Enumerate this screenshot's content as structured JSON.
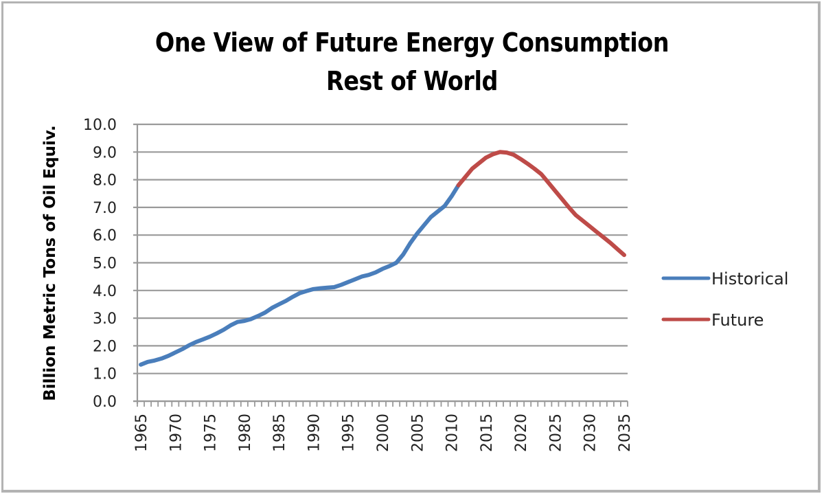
{
  "chart_data": {
    "type": "line",
    "title": "One View of Future Energy Consumption",
    "subtitle": "Rest of World",
    "xlabel": "",
    "ylabel": "Billion Metric Tons of Oil Equiv.",
    "ylim": [
      0,
      10
    ],
    "yticks": [
      "0.0",
      "1.0",
      "2.0",
      "3.0",
      "4.0",
      "5.0",
      "6.0",
      "7.0",
      "8.0",
      "9.0",
      "10.0"
    ],
    "xtick_labels": [
      "1965",
      "1970",
      "1975",
      "1980",
      "1985",
      "1990",
      "1995",
      "2000",
      "2005",
      "2010",
      "2015",
      "2020",
      "2025",
      "2030",
      "2035"
    ],
    "grid": true,
    "legend_position": "right",
    "x": [
      1965,
      1966,
      1967,
      1968,
      1969,
      1970,
      1971,
      1972,
      1973,
      1974,
      1975,
      1976,
      1977,
      1978,
      1979,
      1980,
      1981,
      1982,
      1983,
      1984,
      1985,
      1986,
      1987,
      1988,
      1989,
      1990,
      1991,
      1992,
      1993,
      1994,
      1995,
      1996,
      1997,
      1998,
      1999,
      2000,
      2001,
      2002,
      2003,
      2004,
      2005,
      2006,
      2007,
      2008,
      2009,
      2010,
      2011,
      2012,
      2013,
      2014,
      2015,
      2016,
      2017,
      2018,
      2019,
      2020,
      2021,
      2022,
      2023,
      2024,
      2025,
      2026,
      2027,
      2028,
      2029,
      2030,
      2031,
      2032,
      2033,
      2034,
      2035
    ],
    "series": [
      {
        "name": "Historical",
        "color": "#4a7ebb",
        "x": [
          1965,
          1966,
          1967,
          1968,
          1969,
          1970,
          1971,
          1972,
          1973,
          1974,
          1975,
          1976,
          1977,
          1978,
          1979,
          1980,
          1981,
          1982,
          1983,
          1984,
          1985,
          1986,
          1987,
          1988,
          1989,
          1990,
          1991,
          1992,
          1993,
          1994,
          1995,
          1996,
          1997,
          1998,
          1999,
          2000,
          2001,
          2002,
          2003,
          2004,
          2005,
          2006,
          2007,
          2008,
          2009,
          2010,
          2011
        ],
        "values": [
          1.32,
          1.42,
          1.47,
          1.54,
          1.64,
          1.76,
          1.88,
          2.02,
          2.14,
          2.23,
          2.33,
          2.45,
          2.58,
          2.74,
          2.86,
          2.9,
          2.97,
          3.08,
          3.2,
          3.37,
          3.5,
          3.62,
          3.77,
          3.9,
          3.98,
          4.05,
          4.08,
          4.1,
          4.12,
          4.2,
          4.3,
          4.4,
          4.5,
          4.56,
          4.65,
          4.78,
          4.88,
          5.0,
          5.3,
          5.7,
          6.05,
          6.35,
          6.65,
          6.85,
          7.05,
          7.4,
          7.8
        ]
      },
      {
        "name": "Future",
        "color": "#be4b48",
        "x": [
          2011,
          2012,
          2013,
          2014,
          2015,
          2016,
          2017,
          2018,
          2019,
          2020,
          2021,
          2022,
          2023,
          2024,
          2025,
          2026,
          2027,
          2028,
          2029,
          2030,
          2031,
          2032,
          2033,
          2034,
          2035
        ],
        "values": [
          7.8,
          8.1,
          8.4,
          8.6,
          8.8,
          8.92,
          9.0,
          8.98,
          8.9,
          8.75,
          8.58,
          8.4,
          8.2,
          7.9,
          7.6,
          7.3,
          7.0,
          6.72,
          6.52,
          6.32,
          6.12,
          5.92,
          5.72,
          5.5,
          5.28
        ]
      }
    ]
  }
}
